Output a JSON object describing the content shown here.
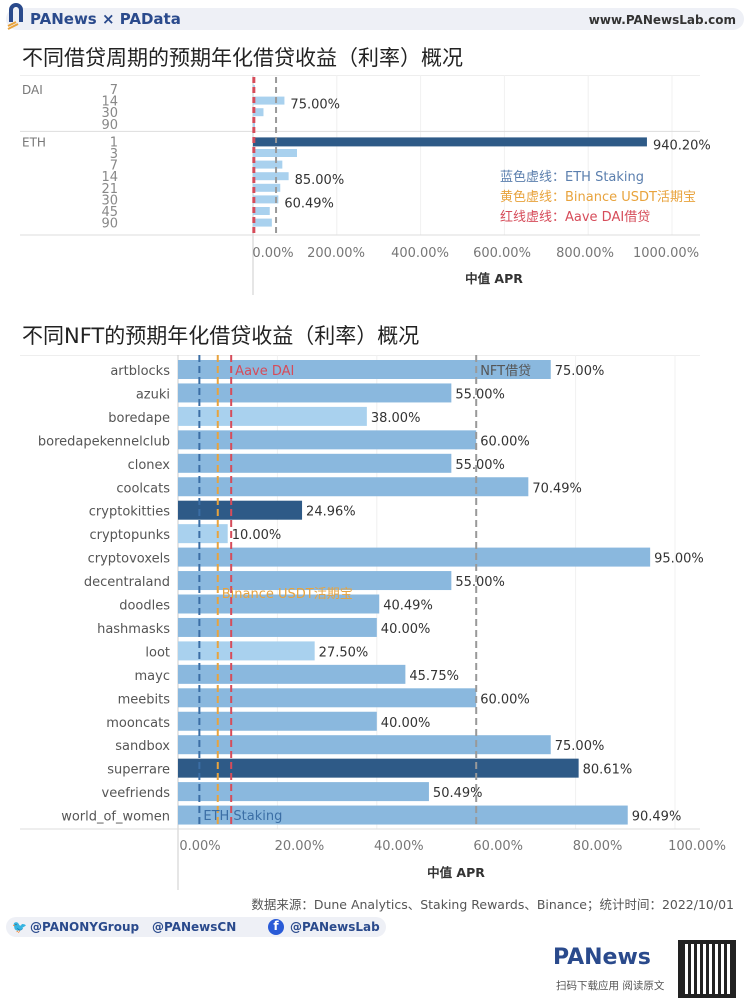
{
  "header": {
    "brand": "PANews × PAData",
    "site": "www.PANewsLab.com"
  },
  "colors": {
    "dark": "#2e5a87",
    "mid": "#8ab8de",
    "light": "#a9d1ee",
    "eth_staking": "#3b6ea5",
    "binance": "#e8a33d",
    "aave": "#d64c5a",
    "grey": "#999999"
  },
  "chart_data": [
    {
      "type": "bar",
      "orientation": "horizontal",
      "title": "不同借贷周期的预期年化借贷收益（利率）概况",
      "xlabel": "中值 APR",
      "xlim": [
        0,
        1000
      ],
      "xticks": [
        "0.00%",
        "200.00%",
        "400.00%",
        "600.00%",
        "800.00%",
        "1000.00%"
      ],
      "groups": [
        {
          "name": "DAI",
          "rows": [
            {
              "period": "7",
              "value": 2
            },
            {
              "period": "14",
              "value": 75,
              "label": "75.00%"
            },
            {
              "period": "30",
              "value": 25
            },
            {
              "period": "90",
              "value": 2
            }
          ]
        },
        {
          "name": "ETH",
          "rows": [
            {
              "period": "1",
              "value": 940.2,
              "label": "940.20%",
              "dark": true
            },
            {
              "period": "3",
              "value": 105
            },
            {
              "period": "7",
              "value": 70
            },
            {
              "period": "14",
              "value": 85,
              "label": "85.00%"
            },
            {
              "period": "21",
              "value": 65
            },
            {
              "period": "30",
              "value": 60.49,
              "label": "60.49%"
            },
            {
              "period": "45",
              "value": 40
            },
            {
              "period": "90",
              "value": 45
            }
          ]
        }
      ],
      "reference_lines": [
        {
          "value": 2,
          "color": "aave"
        },
        {
          "value": 55,
          "color": "grey"
        }
      ],
      "legend": [
        {
          "key": "蓝色虚线：",
          "text": "ETH Staking",
          "color": "#5b7fae"
        },
        {
          "key": "黄色虚线：",
          "text": "Binance USDT活期宝",
          "color": "#e8a33d"
        },
        {
          "key": "红线虚线：",
          "text": "Aave DAI借贷",
          "color": "#d64c5a"
        }
      ]
    },
    {
      "type": "bar",
      "orientation": "horizontal",
      "title": "不同NFT的预期年化借贷收益（利率）概况",
      "xlabel": "中值 APR",
      "xlim": [
        0,
        100
      ],
      "xticks": [
        "0.00%",
        "20.00%",
        "40.00%",
        "60.00%",
        "80.00%",
        "100.00%"
      ],
      "rows": [
        {
          "name": "artblocks",
          "value": 75,
          "label": "75.00%",
          "shade": "mid"
        },
        {
          "name": "azuki",
          "value": 55,
          "label": "55.00%",
          "shade": "mid"
        },
        {
          "name": "boredape",
          "value": 38,
          "label": "38.00%",
          "shade": "light"
        },
        {
          "name": "boredapekennelclub",
          "value": 60,
          "label": "60.00%",
          "shade": "mid"
        },
        {
          "name": "clonex",
          "value": 55,
          "label": "55.00%",
          "shade": "mid"
        },
        {
          "name": "coolcats",
          "value": 70.49,
          "label": "70.49%",
          "shade": "mid"
        },
        {
          "name": "cryptokitties",
          "value": 24.96,
          "label": "24.96%",
          "shade": "dark"
        },
        {
          "name": "cryptopunks",
          "value": 10,
          "label": "10.00%",
          "shade": "light"
        },
        {
          "name": "cryptovoxels",
          "value": 95,
          "label": "95.00%",
          "shade": "mid"
        },
        {
          "name": "decentraland",
          "value": 55,
          "label": "55.00%",
          "shade": "mid"
        },
        {
          "name": "doodles",
          "value": 40.49,
          "label": "40.49%",
          "shade": "mid"
        },
        {
          "name": "hashmasks",
          "value": 40,
          "label": "40.00%",
          "shade": "mid"
        },
        {
          "name": "loot",
          "value": 27.5,
          "label": "27.50%",
          "shade": "light"
        },
        {
          "name": "mayc",
          "value": 45.75,
          "label": "45.75%",
          "shade": "mid"
        },
        {
          "name": "meebits",
          "value": 60,
          "label": "60.00%",
          "shade": "mid"
        },
        {
          "name": "mooncats",
          "value": 40,
          "label": "40.00%",
          "shade": "mid"
        },
        {
          "name": "sandbox",
          "value": 75,
          "label": "75.00%",
          "shade": "mid"
        },
        {
          "name": "superrare",
          "value": 80.61,
          "label": "80.61%",
          "shade": "dark"
        },
        {
          "name": "veefriends",
          "value": 50.49,
          "label": "50.49%",
          "shade": "mid"
        },
        {
          "name": "world_of_women",
          "value": 90.49,
          "label": "90.49%",
          "shade": "mid"
        }
      ],
      "reference_lines": [
        {
          "value": 4.3,
          "color": "eth_staking",
          "label": "ETH Staking"
        },
        {
          "value": 8,
          "color": "binance",
          "label": "Binance USDT活期宝"
        },
        {
          "value": 10.7,
          "color": "aave",
          "label": "Aave DAI"
        },
        {
          "value": 60,
          "color": "grey",
          "label": "NFT借贷"
        }
      ]
    }
  ],
  "footer": {
    "source": "数据来源：Dune Analytics、Staking Rewards、Binance；统计时间：2022/10/01",
    "twitter": "@PANONYGroup",
    "weibo": "@PANewsCN",
    "facebook": "@PANewsLab",
    "app_brand": "PANews",
    "app_cta": "扫码下载应用  阅读原文"
  }
}
